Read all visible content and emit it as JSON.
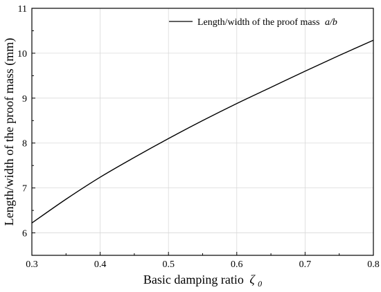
{
  "chart_data": {
    "type": "line",
    "xlabel": "Basic damping ratio",
    "xlabel_symbol": "ζ",
    "xlabel_subscript": "0",
    "ylabel": "Length/width of the proof mass (mm)",
    "xlim": [
      0.3,
      0.8
    ],
    "ylim": [
      5.5,
      11
    ],
    "xticks": [
      0.3,
      0.4,
      0.5,
      0.6,
      0.7,
      0.8
    ],
    "xtick_labels": [
      "0.3",
      "0.4",
      "0.5",
      "0.6",
      "0.7",
      "0.8"
    ],
    "yticks": [
      6,
      7,
      8,
      9,
      10,
      11
    ],
    "ytick_labels": [
      "6",
      "7",
      "8",
      "9",
      "10",
      "11"
    ],
    "grid": true,
    "legend_position": "top-right",
    "series": [
      {
        "name": "Length/width of the proof mass",
        "name_italic_suffix": "a/b",
        "color": "#000000",
        "x": [
          0.3,
          0.35,
          0.4,
          0.45,
          0.5,
          0.55,
          0.6,
          0.65,
          0.7,
          0.75,
          0.8
        ],
        "y": [
          6.22,
          6.75,
          7.24,
          7.68,
          8.1,
          8.5,
          8.88,
          9.24,
          9.6,
          9.95,
          10.29
        ]
      }
    ]
  }
}
